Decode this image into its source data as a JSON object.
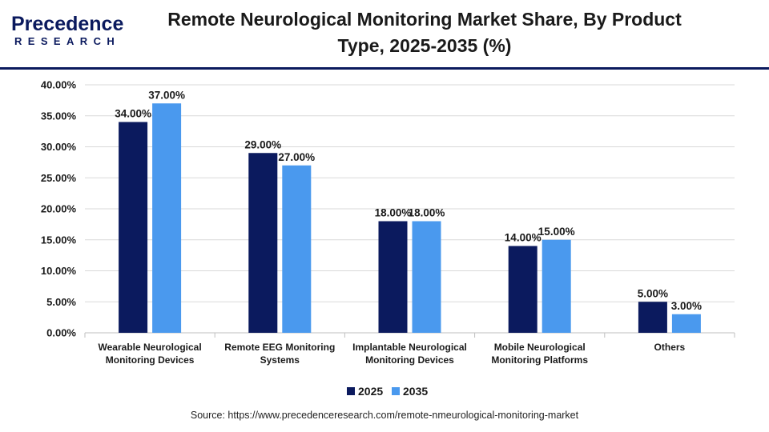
{
  "header": {
    "logo_main": "Precedence",
    "logo_sub": "RESEARCH",
    "title_line1": "Remote Neurological Monitoring Market Share, By Product",
    "title_line2": "Type, 2025-2035 (%)"
  },
  "colors": {
    "brand": "#0b1a5e",
    "series_2025": "#0b1a5e",
    "series_2035": "#4a99ee",
    "grid": "#d9d9d9"
  },
  "chart_data": {
    "type": "bar",
    "title": "Remote Neurological Monitoring Market Share, By Product Type, 2025-2035 (%)",
    "categories": [
      [
        "Wearable Neurological",
        "Monitoring Devices"
      ],
      [
        "Remote EEG Monitoring",
        "Systems"
      ],
      [
        "Implantable Neurological",
        "Monitoring Devices"
      ],
      [
        "Mobile Neurological",
        "Monitoring Platforms"
      ],
      [
        "Others"
      ]
    ],
    "series": [
      {
        "name": "2025",
        "values": [
          34,
          29,
          18,
          14,
          5
        ],
        "labels": [
          "34.00%",
          "29.00%",
          "18.00%",
          "14.00%",
          "5.00%"
        ]
      },
      {
        "name": "2035",
        "values": [
          37,
          27,
          18,
          15,
          3
        ],
        "labels": [
          "37.00%",
          "27.00%",
          "18.00%",
          "15.00%",
          "3.00%"
        ]
      }
    ],
    "yticks": [
      "0.00%",
      "5.00%",
      "10.00%",
      "15.00%",
      "20.00%",
      "25.00%",
      "30.00%",
      "35.00%",
      "40.00%"
    ],
    "ylim": [
      0,
      40
    ],
    "grid": true,
    "legend_position": "bottom-center"
  },
  "source": "Source: https://www.precedenceresearch.com/remote-nmeurological-monitoring-market"
}
